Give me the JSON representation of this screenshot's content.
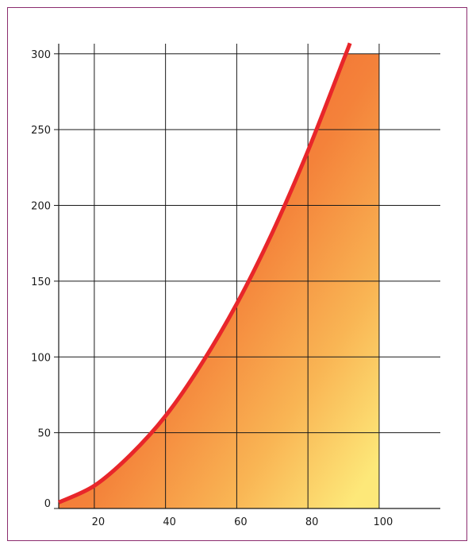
{
  "chart_data": {
    "type": "area",
    "title": "",
    "xlabel": "",
    "ylabel": "",
    "xlim": [
      10,
      100
    ],
    "ylim": [
      0,
      300
    ],
    "x_ticks": [
      20,
      40,
      60,
      80,
      100
    ],
    "y_ticks": [
      0,
      50,
      100,
      150,
      200,
      250,
      300
    ],
    "x_tick_labels": [
      "20",
      "40",
      "60",
      "80",
      "100"
    ],
    "y_tick_labels": [
      "0",
      "50",
      "100",
      "150",
      "200",
      "250",
      "300"
    ],
    "grid": true,
    "series": [
      {
        "x": [
          10,
          20,
          30,
          40,
          50,
          60,
          70,
          80,
          90,
          91.8
        ],
        "y": [
          4,
          15,
          35,
          61,
          95,
          135,
          182,
          236,
          296,
          307
        ],
        "color": "#e8262a"
      }
    ],
    "fill_cap": 300,
    "fill_gradient": [
      "#ef5f30",
      "#f5933f",
      "#fbd465",
      "#fde879"
    ]
  }
}
